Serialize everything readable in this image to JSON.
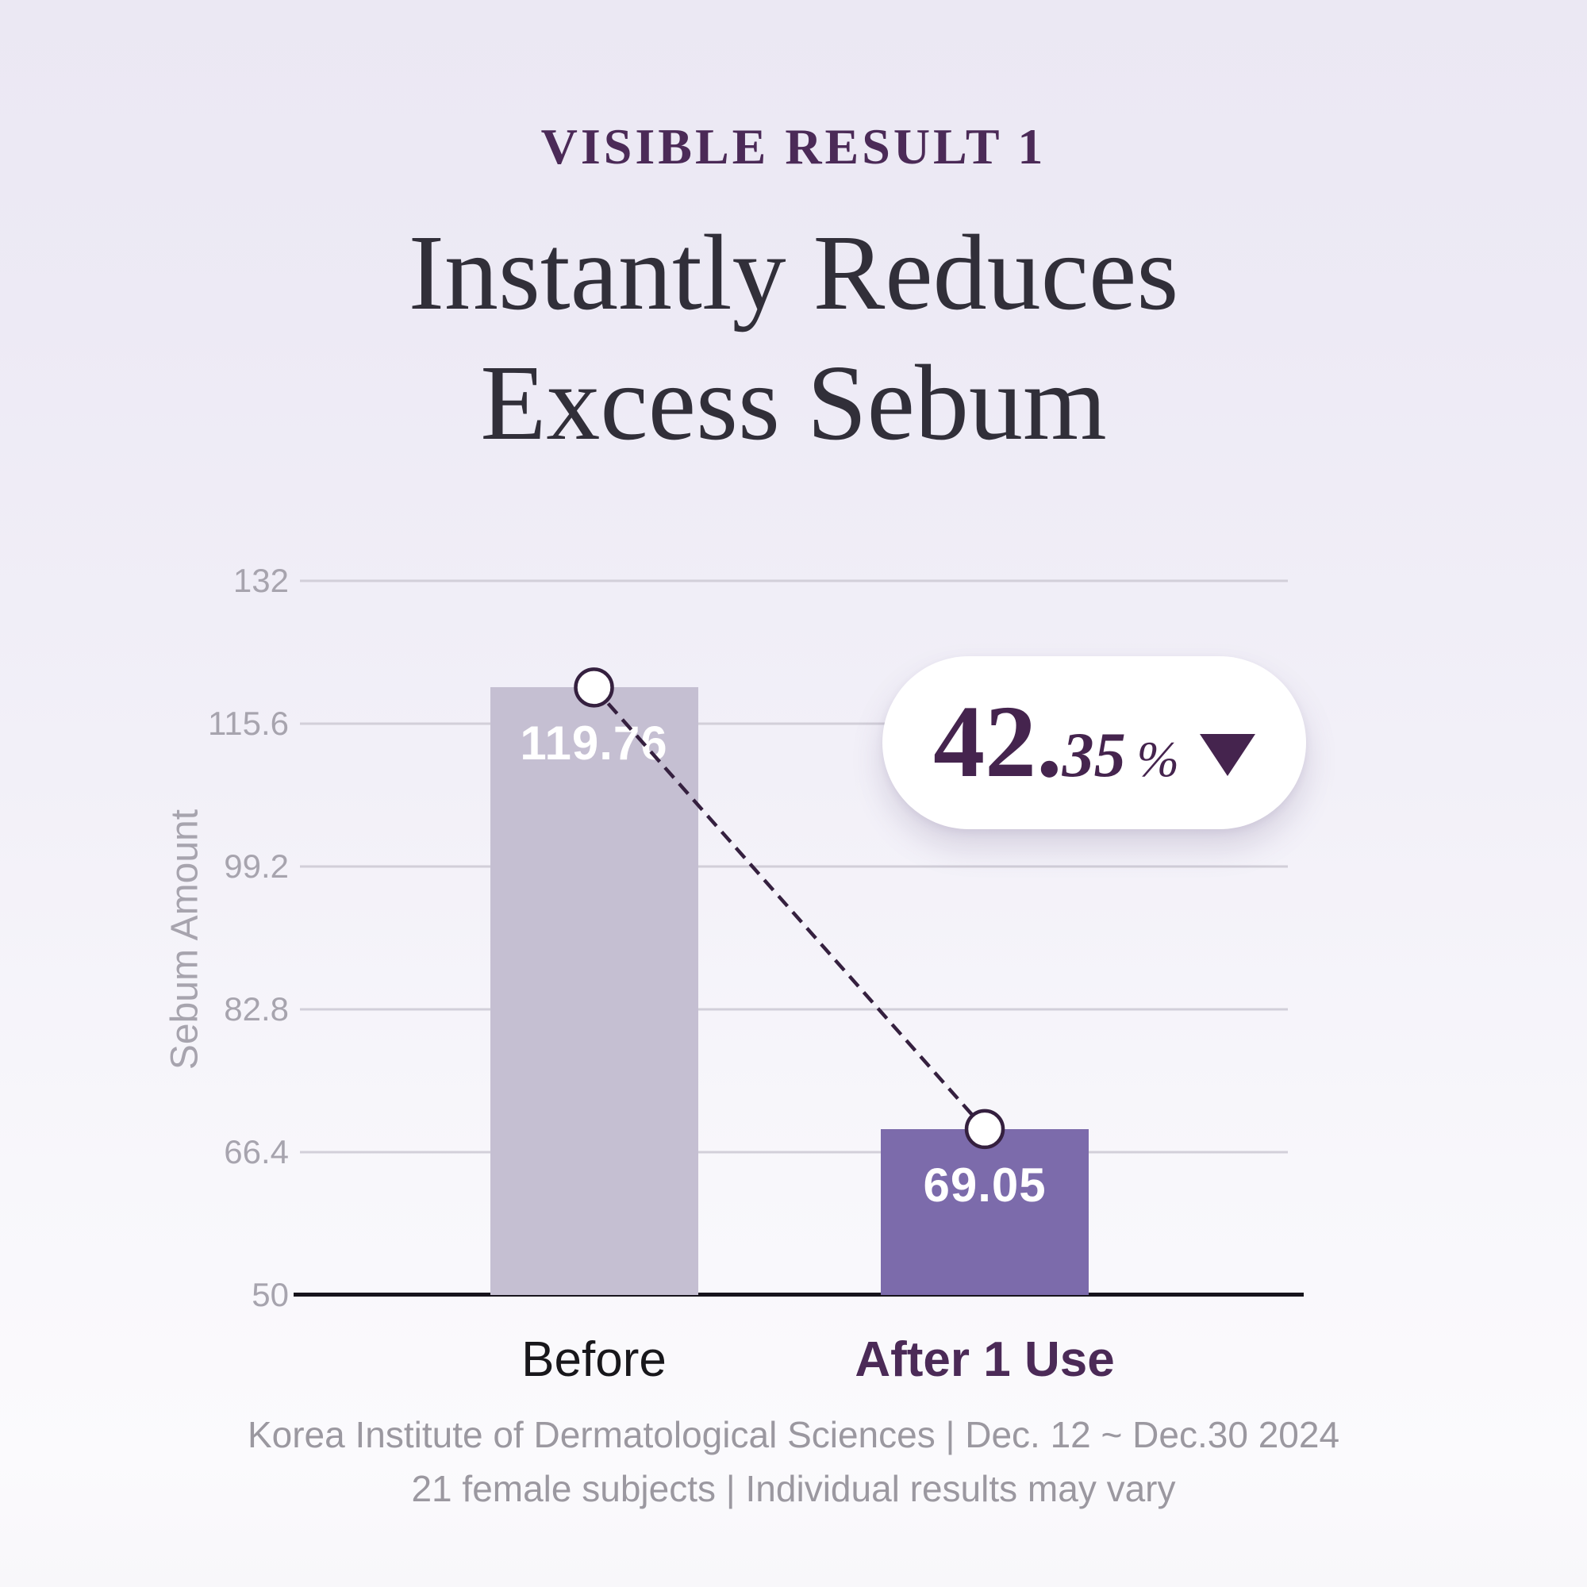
{
  "header": {
    "eyebrow": "VISIBLE RESULT 1",
    "title_line1": "Instantly Reduces",
    "title_line2": "Excess Sebum"
  },
  "chart_data": {
    "type": "bar",
    "title": "Instantly Reduces Excess Sebum",
    "xlabel": "",
    "ylabel": "Sebum Amount",
    "categories": [
      "Before",
      "After 1 Use"
    ],
    "values": [
      119.76,
      69.05
    ],
    "value_labels": [
      "119.76",
      "69.05"
    ],
    "ylim": [
      50,
      132
    ],
    "yticks": [
      132,
      115.6,
      99.2,
      82.8,
      66.4,
      50
    ],
    "grid": true,
    "legend": false,
    "bar_colors": [
      "#c5bfd2",
      "#7c6bab"
    ],
    "category_colors": [
      "#18171b",
      "#4b2a57"
    ],
    "category_bold": [
      false,
      true
    ],
    "connector": {
      "style": "dashed",
      "color": "#35203f",
      "markers": "circle"
    }
  },
  "badge": {
    "value": "42.35",
    "display_int": "42.",
    "display_dec": "35",
    "unit": "%",
    "direction": "down",
    "text_color": "#45244e"
  },
  "footer": {
    "line1": "Korea Institute of Dermatological Sciences | Dec. 12 ~ Dec.30 2024",
    "line2": "21 female subjects | Individual results may vary"
  },
  "colors": {
    "background_top": "#ebe8f3",
    "background_bottom": "#fbfafd",
    "eyebrow": "#4b2a57",
    "title": "#312f39",
    "grid_line": "#d2cfd9",
    "axis_line": "#17141c",
    "tick_label": "#a7a4ae",
    "axis_title": "#a7a4ae",
    "value_label": "#ffffff",
    "marker_stroke": "#35203f",
    "marker_fill": "#ffffff",
    "badge_background": "#ffffff",
    "footer_text": "#9b98a0"
  }
}
